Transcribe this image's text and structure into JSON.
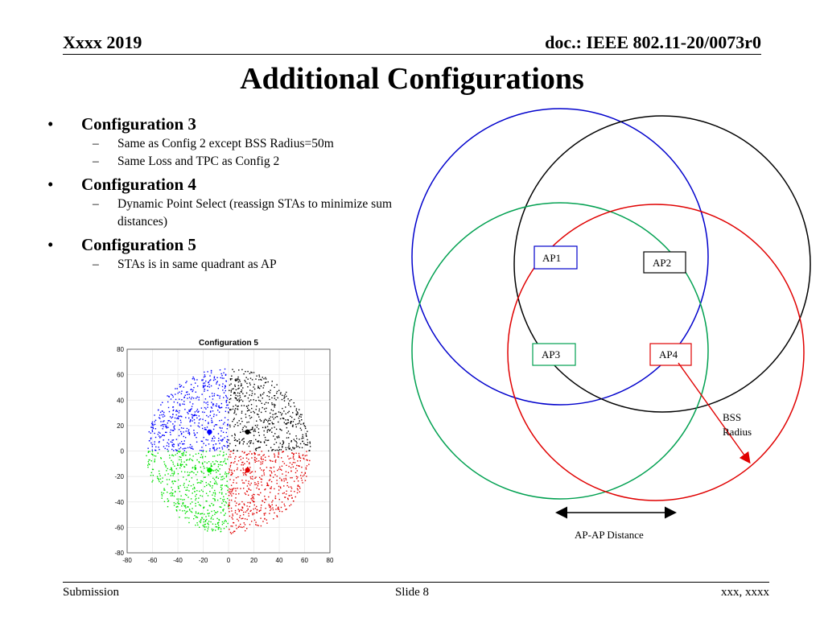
{
  "header": {
    "left": "Xxxx 2019",
    "right": "doc.: IEEE 802.11-20/0073r0"
  },
  "title": "Additional Configurations",
  "bullets": [
    {
      "label": "Configuration 3",
      "sub": [
        "Same as Config 2 except BSS Radius=50m",
        "Same Loss and TPC as Config 2"
      ]
    },
    {
      "label": "Configuration 4",
      "sub": [
        "Dynamic Point Select (reassign STAs to minimize sum distances)"
      ]
    },
    {
      "label": "Configuration 5",
      "sub": [
        "STAs is in same quadrant as AP"
      ]
    }
  ],
  "diagram": {
    "ap_labels": [
      "AP1",
      "AP2",
      "AP3",
      "AP4"
    ],
    "bss_radius_label": "BSS Radius",
    "distance_label": "AP-AP Distance",
    "colors": {
      "ap1": "#0000cc",
      "ap2": "#000000",
      "ap3": "#00a050",
      "ap4": "#e00000"
    }
  },
  "chart_data": {
    "type": "scatter",
    "title": "Configuration 5",
    "xlabel": "",
    "ylabel": "",
    "xlim": [
      -80,
      80
    ],
    "ylim": [
      -80,
      80
    ],
    "xticks": [
      -80,
      -60,
      -40,
      -20,
      0,
      20,
      40,
      60,
      80
    ],
    "yticks": [
      80,
      60,
      40,
      20,
      0,
      -20,
      -40,
      -60,
      -80
    ],
    "grid": true,
    "series": [
      {
        "quadrant": "upper-left",
        "color": "#0000ff",
        "ap": [
          -15,
          15
        ],
        "radius": 65
      },
      {
        "quadrant": "upper-right",
        "color": "#000000",
        "ap": [
          15,
          15
        ],
        "radius": 65
      },
      {
        "quadrant": "lower-left",
        "color": "#00e000",
        "ap": [
          -15,
          -15
        ],
        "radius": 65
      },
      {
        "quadrant": "lower-right",
        "color": "#e00000",
        "ap": [
          15,
          -15
        ],
        "radius": 65
      }
    ]
  },
  "footer": {
    "left": "Submission",
    "center": "Slide 8",
    "right": "xxx, xxxx"
  }
}
